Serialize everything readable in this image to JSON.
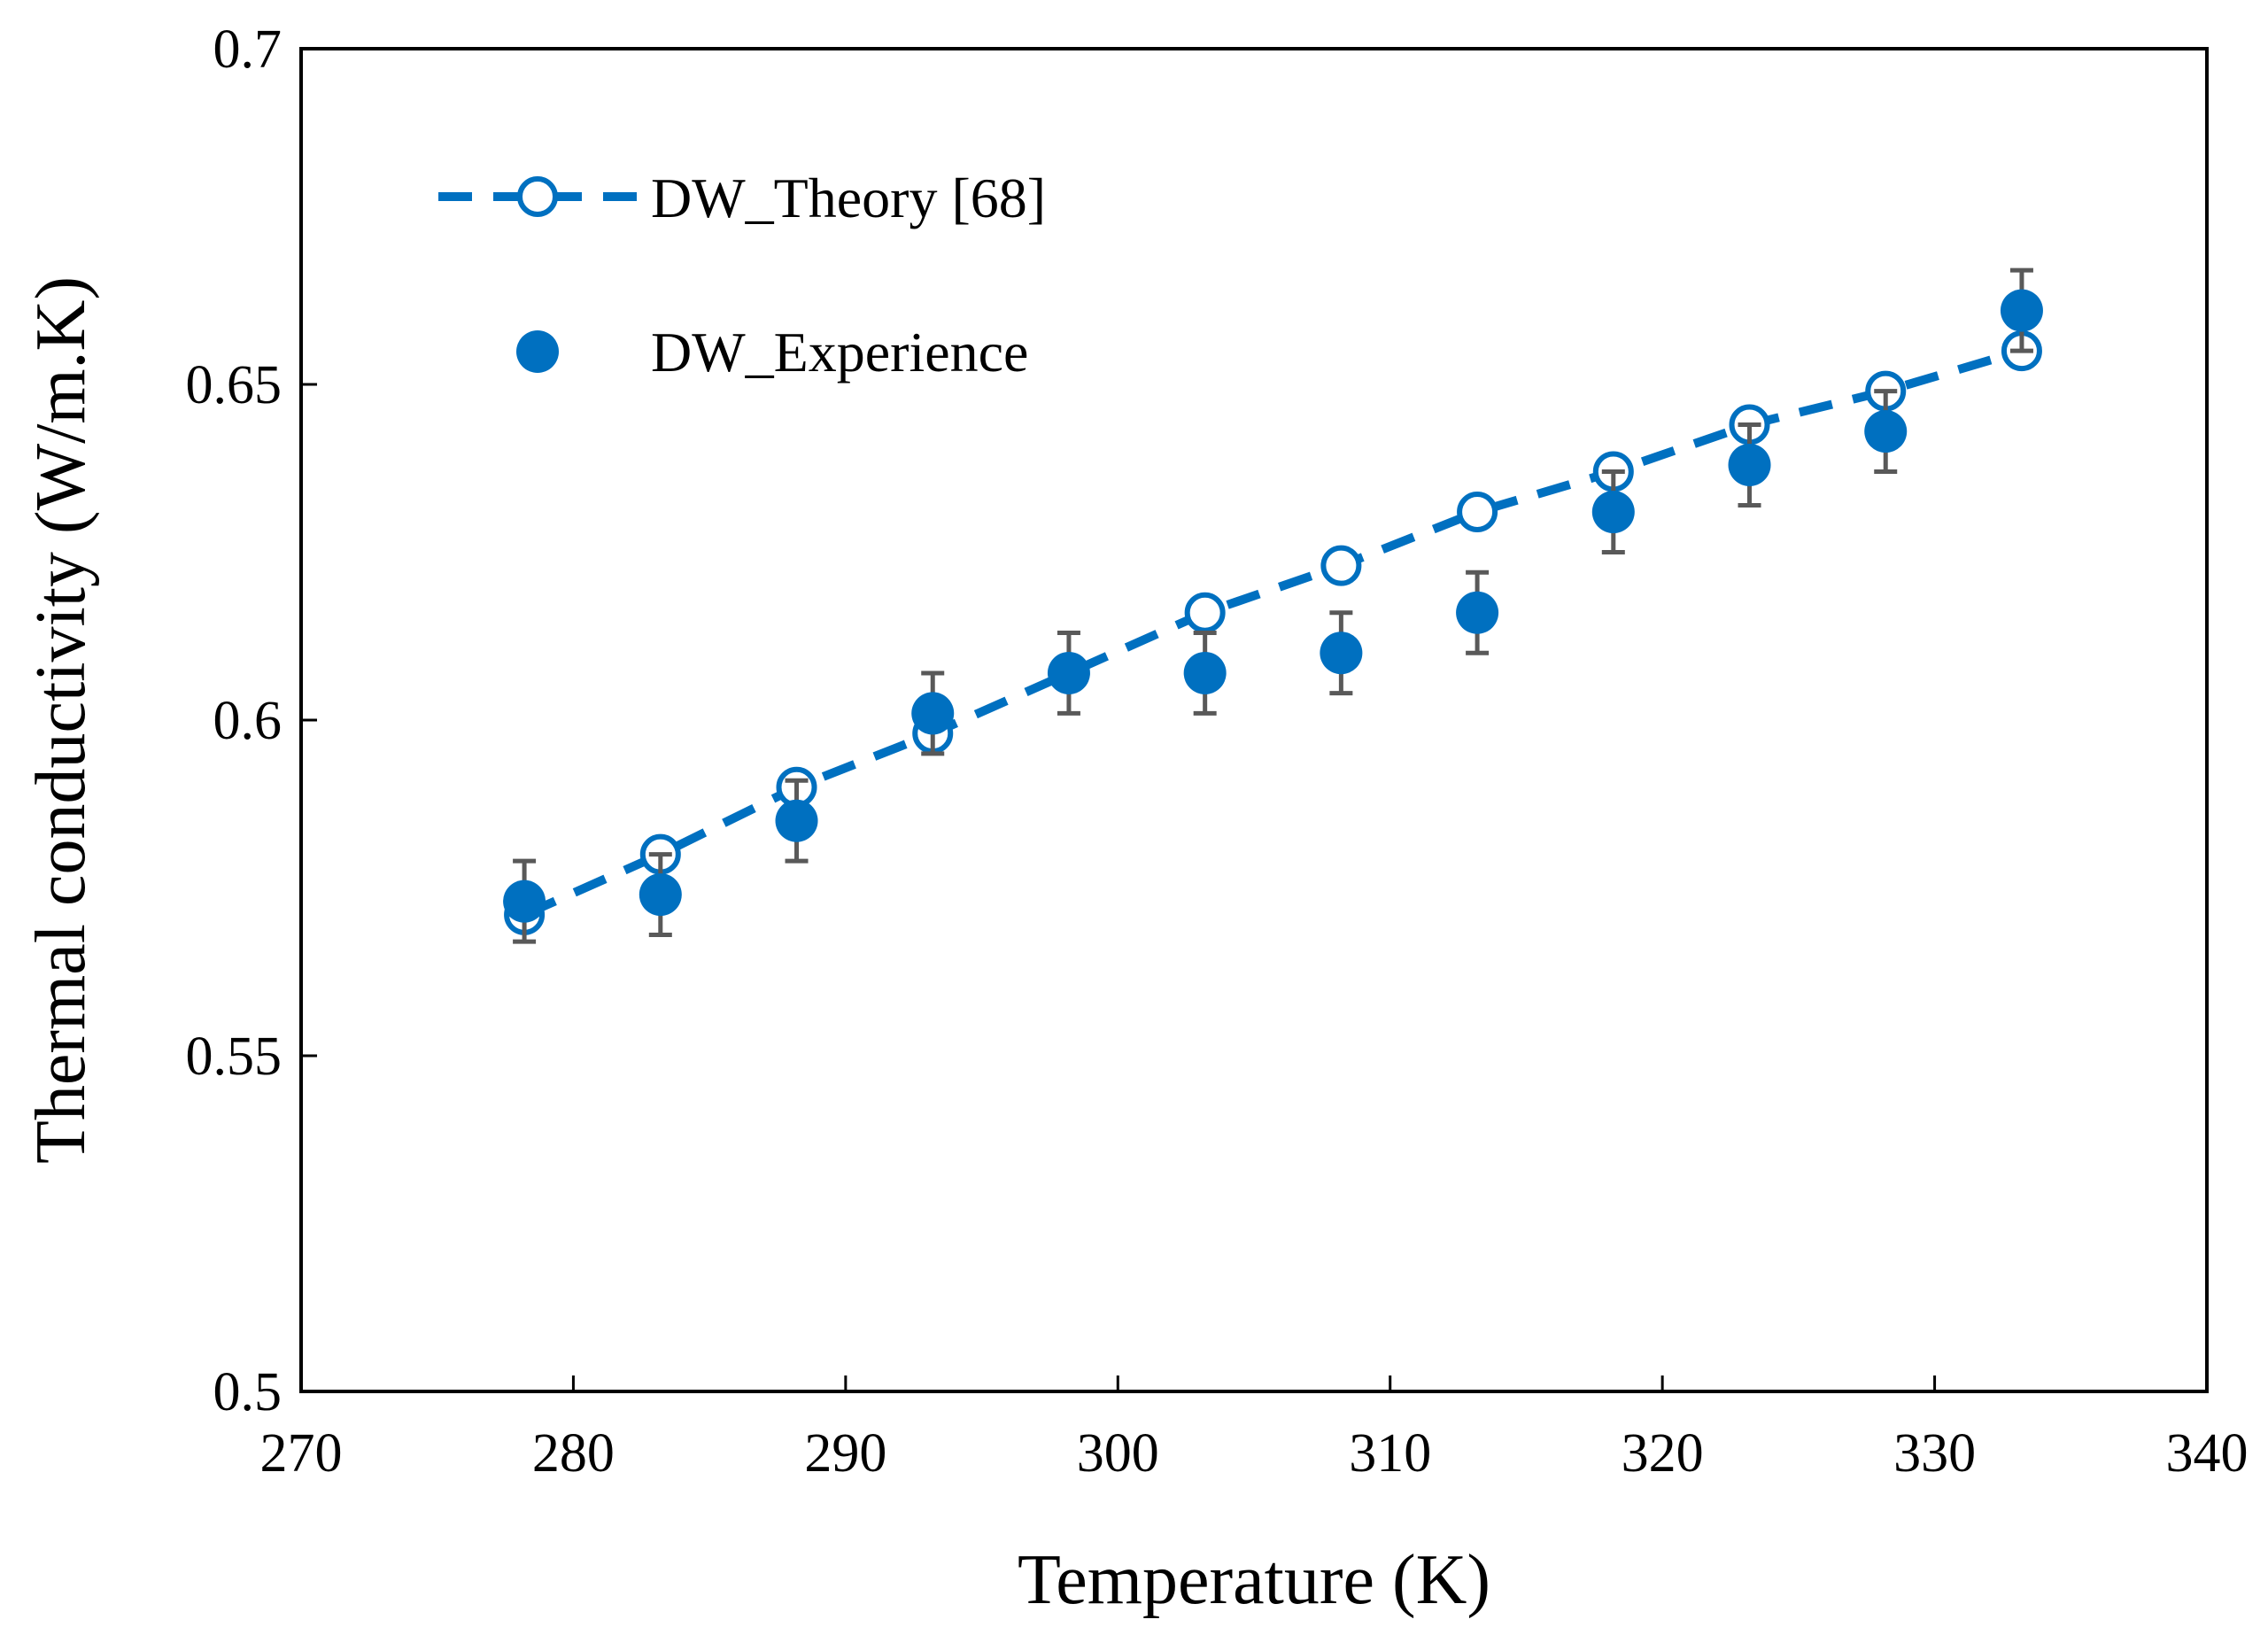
{
  "chart_data": {
    "type": "scatter",
    "xlabel": "Temperature (K)",
    "ylabel": "Thermal conductivity (W/m.K)",
    "xlim": [
      270,
      340
    ],
    "ylim": [
      0.5,
      0.7
    ],
    "xticks": [
      270,
      280,
      290,
      300,
      310,
      320,
      330,
      340
    ],
    "yticks": [
      0.5,
      0.55,
      0.6,
      0.65,
      0.7
    ],
    "xtick_labels": [
      "270",
      "280",
      "290",
      "300",
      "310",
      "320",
      "330",
      "340"
    ],
    "ytick_labels": [
      "0.5",
      "0.55",
      "0.6",
      "0.65",
      "0.7"
    ],
    "grid": false,
    "legend_position": "top-left",
    "series": [
      {
        "name": "DW_Theory [68]",
        "style": "dashed-line-open-circle",
        "color": "#0070C0",
        "x": [
          278.2,
          283.2,
          288.2,
          293.2,
          298.2,
          303.2,
          308.2,
          313.2,
          318.2,
          323.2,
          328.2,
          333.2
        ],
        "y": [
          0.571,
          0.58,
          0.59,
          0.598,
          0.607,
          0.616,
          0.623,
          0.631,
          0.637,
          0.644,
          0.649,
          0.655
        ]
      },
      {
        "name": "DW_Experience",
        "style": "filled-circle-errorbar",
        "color": "#0070C0",
        "errorbar_color": "#595959",
        "x": [
          278.2,
          283.2,
          288.2,
          293.2,
          298.2,
          303.2,
          308.2,
          313.2,
          318.2,
          323.2,
          328.2,
          333.2
        ],
        "y": [
          0.573,
          0.574,
          0.585,
          0.601,
          0.607,
          0.607,
          0.61,
          0.616,
          0.631,
          0.638,
          0.643,
          0.661
        ],
        "yerr": [
          0.006,
          0.006,
          0.006,
          0.006,
          0.006,
          0.006,
          0.006,
          0.006,
          0.006,
          0.006,
          0.006,
          0.006
        ]
      }
    ]
  }
}
